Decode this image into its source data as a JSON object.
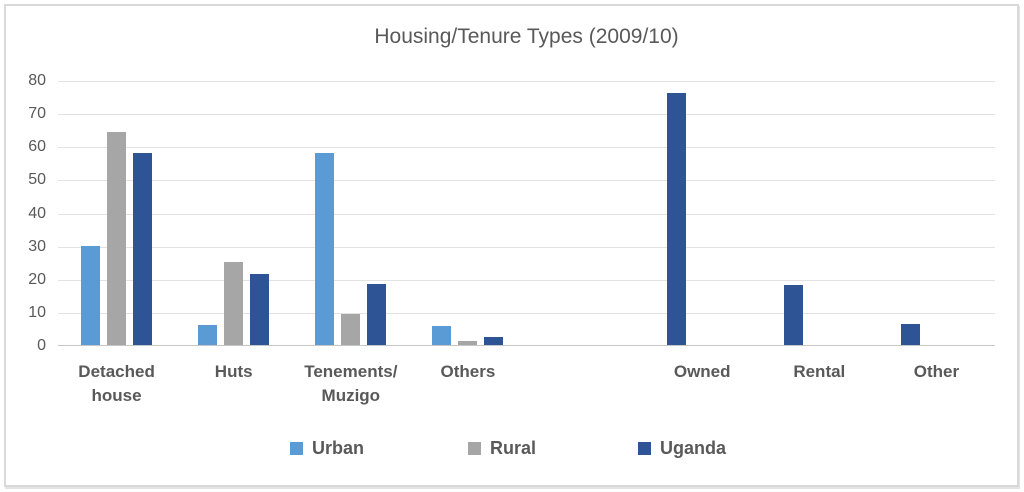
{
  "window": {
    "background": "#ffffff",
    "frame_border_color": "#d9d9d9"
  },
  "colors": {
    "grid": "#e2e2e2",
    "axis_line": "#c6c6c6",
    "text": "#595959"
  },
  "chart_data": {
    "type": "bar",
    "title": "Housing/Tenure Types (2009/10)",
    "xlabel": "",
    "ylabel": "",
    "ylim": [
      0,
      80
    ],
    "grid": true,
    "legend_position": "bottom",
    "y_axis": {
      "min": 0,
      "max": 80,
      "step": 10,
      "ticks": [
        0,
        10,
        20,
        30,
        40,
        50,
        60,
        70,
        80
      ]
    },
    "series": [
      {
        "name": "Urban",
        "color": "#5B9BD5"
      },
      {
        "name": "Rural",
        "color": "#A6A6A6"
      },
      {
        "name": "Uganda",
        "color": "#2F5496"
      }
    ],
    "groups": [
      {
        "label": "Detached house",
        "label_lines": [
          "Detached",
          "house"
        ],
        "bars": [
          {
            "series": "Urban",
            "value": 30
          },
          {
            "series": "Rural",
            "value": 64.4
          },
          {
            "series": "Uganda",
            "value": 58
          }
        ]
      },
      {
        "label": "Huts",
        "label_lines": [
          "Huts"
        ],
        "bars": [
          {
            "series": "Urban",
            "value": 6
          },
          {
            "series": "Rural",
            "value": 25
          },
          {
            "series": "Uganda",
            "value": 21.5
          }
        ]
      },
      {
        "label": "Tenements/Muzigo",
        "label_lines": [
          "Tenements/",
          "Muzigo"
        ],
        "bars": [
          {
            "series": "Urban",
            "value": 58
          },
          {
            "series": "Rural",
            "value": 9.3
          },
          {
            "series": "Uganda",
            "value": 18.5
          }
        ]
      },
      {
        "label": "Others",
        "label_lines": [
          "Others"
        ],
        "bars": [
          {
            "series": "Urban",
            "value": 5.8
          },
          {
            "series": "Rural",
            "value": 1.2
          },
          {
            "series": "Uganda",
            "value": 2.3
          }
        ]
      },
      {
        "label": "",
        "label_lines": [],
        "bars": []
      },
      {
        "label": "Owned",
        "label_lines": [
          "Owned"
        ],
        "bars": [
          {
            "series": "Uganda",
            "value": 76
          }
        ]
      },
      {
        "label": "Rental",
        "label_lines": [
          "Rental"
        ],
        "bars": [
          {
            "series": "Uganda",
            "value": 18
          }
        ]
      },
      {
        "label": "Other",
        "label_lines": [
          "Other"
        ],
        "bars": [
          {
            "series": "Uganda",
            "value": 6.3
          }
        ]
      }
    ]
  }
}
